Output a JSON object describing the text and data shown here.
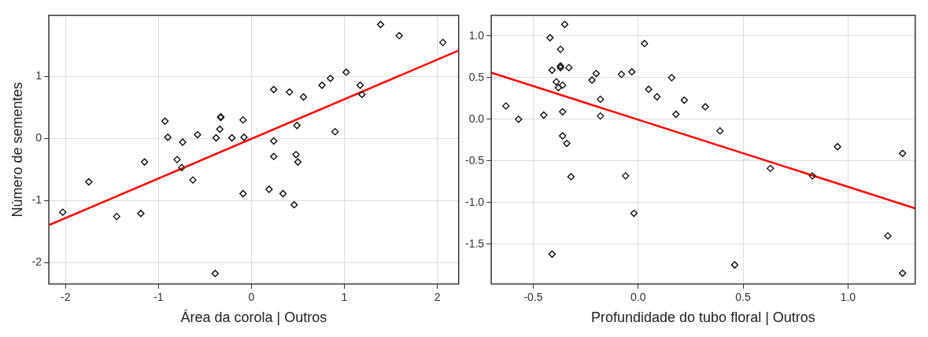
{
  "chart_data": [
    {
      "type": "scatter",
      "xlabel": "Área da corola | Outros",
      "ylabel": "Número de sementes",
      "xlim": [
        -2.18,
        2.23
      ],
      "ylim": [
        -2.35,
        1.99
      ],
      "xticks": [
        -2,
        -1,
        0,
        1,
        2
      ],
      "yticks": [
        -2,
        -1,
        0,
        1
      ],
      "grid": true,
      "series": [
        {
          "marker": "diamond",
          "color": "#000000",
          "x": [
            -2.03,
            -1.75,
            -1.45,
            -1.19,
            -1.15,
            -0.93,
            -0.9,
            -0.8,
            -0.74,
            -0.75,
            -0.63,
            -0.58,
            -0.38,
            -0.33,
            -0.33,
            -0.34,
            -0.21,
            -0.09,
            -0.08,
            -0.09,
            -0.39,
            0.19,
            0.24,
            0.24,
            0.24,
            0.34,
            0.41,
            0.46,
            0.48,
            0.49,
            0.5,
            0.56,
            0.76,
            0.85,
            0.9,
            1.02,
            1.17,
            1.19,
            1.39,
            1.59,
            2.06
          ],
          "values": [
            -1.19,
            -0.7,
            -1.26,
            -1.21,
            -0.38,
            0.28,
            0.02,
            -0.34,
            -0.06,
            -0.47,
            -0.67,
            0.06,
            0.01,
            0.35,
            0.34,
            0.15,
            0.01,
            0.3,
            0.02,
            -0.89,
            -2.18,
            -0.82,
            0.79,
            -0.04,
            -0.29,
            -0.89,
            0.75,
            -1.07,
            -0.26,
            0.21,
            -0.38,
            0.67,
            0.86,
            0.97,
            0.11,
            1.07,
            0.86,
            0.71,
            1.84,
            1.66,
            1.55
          ]
        },
        {
          "type": "line",
          "color": "#ff0000",
          "x": [
            -2.18,
            2.23
          ],
          "values": [
            -1.4,
            1.42
          ]
        }
      ]
    },
    {
      "type": "scatter",
      "xlabel": "Profundidade do tubo floral | Outros",
      "xlim": [
        -0.7,
        1.32
      ],
      "ylim": [
        -1.98,
        1.25
      ],
      "xticks": [
        -0.5,
        {
          "value": 0,
          "label": "0.0"
        },
        0.5,
        {
          "value": 1,
          "label": "1.0"
        }
      ],
      "yticks": [
        -1.5,
        {
          "value": -1,
          "label": "-1.0"
        },
        -0.5,
        {
          "value": 0,
          "label": "0.0"
        },
        0.5,
        {
          "value": 1,
          "label": "1.0"
        }
      ],
      "grid": true,
      "series": [
        {
          "marker": "diamond",
          "color": "#000000",
          "x": [
            -0.63,
            -0.57,
            -0.42,
            -0.35,
            -0.37,
            -0.41,
            -0.37,
            -0.37,
            -0.33,
            -0.39,
            -0.38,
            -0.36,
            -0.45,
            -0.36,
            -0.36,
            -0.34,
            -0.32,
            -0.41,
            -0.22,
            -0.2,
            -0.18,
            -0.18,
            -0.08,
            -0.03,
            -0.06,
            -0.02,
            0.03,
            0.05,
            0.09,
            0.16,
            0.18,
            0.22,
            0.32,
            0.39,
            0.46,
            0.63,
            0.83,
            0.95,
            1.26,
            1.19,
            1.26
          ],
          "values": [
            0.16,
            0.0,
            0.98,
            1.14,
            0.84,
            0.59,
            0.64,
            0.62,
            0.62,
            0.45,
            0.38,
            0.41,
            0.05,
            0.09,
            -0.2,
            -0.29,
            -0.69,
            -1.62,
            0.47,
            0.55,
            0.24,
            0.04,
            0.54,
            0.57,
            -0.68,
            -1.13,
            0.91,
            0.36,
            0.27,
            0.5,
            0.06,
            0.23,
            0.15,
            -0.14,
            -1.75,
            -0.59,
            -0.68,
            -0.33,
            -0.41,
            -1.4,
            -1.85
          ]
        },
        {
          "type": "line",
          "color": "#ff0000",
          "x": [
            -0.7,
            1.32
          ],
          "values": [
            0.56,
            -1.07
          ]
        }
      ]
    }
  ]
}
